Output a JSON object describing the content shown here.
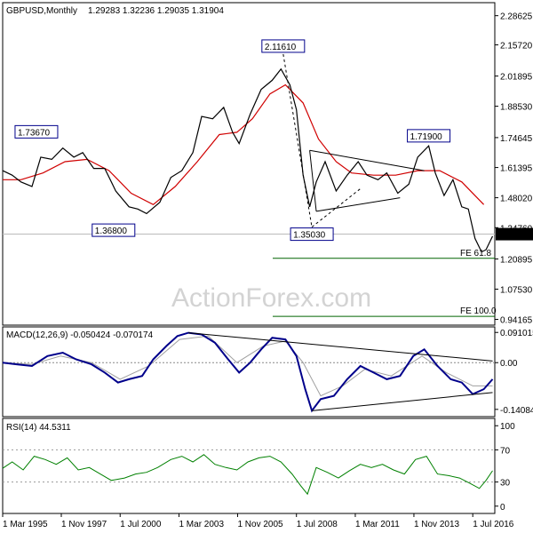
{
  "chart_data": [
    {
      "type": "line",
      "panel": "price",
      "title": "GBPUSD,Monthly",
      "ohlc_header": "1.29283 1.32236 1.29035 1.31904",
      "last_price": "1.31904",
      "y_ticks": [
        "2.28625",
        "2.15720",
        "2.01895",
        "1.88530",
        "1.74645",
        "1.61395",
        "1.48020",
        "1.34760",
        "1.20895",
        "1.07530",
        "0.94165"
      ],
      "y_tick_values": [
        2.28625,
        2.1572,
        2.01895,
        1.8853,
        1.74645,
        1.61395,
        1.4802,
        1.3476,
        1.20895,
        1.0753,
        0.94165
      ],
      "ylim": [
        0.92,
        2.34
      ],
      "xlim": [
        1995.17,
        2017.5
      ],
      "x_ticks": [
        "1 Mar 1995",
        "1 Nov 1997",
        "1 Jul 2000",
        "1 Mar 2003",
        "1 Nov 2005",
        "1 Jul 2008",
        "1 Mar 2011",
        "1 Nov 2013",
        "1 Jul 2016"
      ],
      "x_tick_values": [
        1995.17,
        1997.83,
        2000.5,
        2003.17,
        2005.83,
        2008.5,
        2011.17,
        2013.83,
        2016.5
      ],
      "price_points": [
        [
          1995.17,
          1.6
        ],
        [
          1995.6,
          1.58
        ],
        [
          1996.0,
          1.55
        ],
        [
          1996.5,
          1.53
        ],
        [
          1996.9,
          1.66
        ],
        [
          1997.4,
          1.65
        ],
        [
          1997.9,
          1.7
        ],
        [
          1998.4,
          1.66
        ],
        [
          1998.8,
          1.68
        ],
        [
          1999.3,
          1.61
        ],
        [
          1999.8,
          1.61
        ],
        [
          2000.3,
          1.51
        ],
        [
          2000.9,
          1.44
        ],
        [
          2001.3,
          1.43
        ],
        [
          2001.7,
          1.41
        ],
        [
          2002.3,
          1.46
        ],
        [
          2002.8,
          1.57
        ],
        [
          2003.3,
          1.6
        ],
        [
          2003.8,
          1.68
        ],
        [
          2004.2,
          1.84
        ],
        [
          2004.7,
          1.83
        ],
        [
          2005.2,
          1.88
        ],
        [
          2005.6,
          1.77
        ],
        [
          2005.9,
          1.72
        ],
        [
          2006.4,
          1.85
        ],
        [
          2006.9,
          1.96
        ],
        [
          2007.4,
          2.0
        ],
        [
          2007.8,
          2.05
        ],
        [
          2008.2,
          1.98
        ],
        [
          2008.5,
          1.87
        ],
        [
          2008.8,
          1.58
        ],
        [
          2009.1,
          1.44
        ],
        [
          2009.4,
          1.55
        ],
        [
          2009.8,
          1.64
        ],
        [
          2010.3,
          1.51
        ],
        [
          2010.8,
          1.58
        ],
        [
          2011.3,
          1.64
        ],
        [
          2011.7,
          1.58
        ],
        [
          2012.2,
          1.56
        ],
        [
          2012.6,
          1.59
        ],
        [
          2013.1,
          1.5
        ],
        [
          2013.6,
          1.54
        ],
        [
          2014.0,
          1.66
        ],
        [
          2014.5,
          1.71
        ],
        [
          2014.8,
          1.59
        ],
        [
          2015.2,
          1.49
        ],
        [
          2015.6,
          1.56
        ],
        [
          2016.0,
          1.44
        ],
        [
          2016.3,
          1.43
        ],
        [
          2016.6,
          1.3
        ],
        [
          2016.9,
          1.24
        ],
        [
          2017.1,
          1.25
        ],
        [
          2017.4,
          1.31
        ]
      ],
      "ma_points": [
        [
          1995.17,
          1.56
        ],
        [
          1996.0,
          1.56
        ],
        [
          1997.0,
          1.59
        ],
        [
          1998.0,
          1.64
        ],
        [
          1999.0,
          1.65
        ],
        [
          2000.0,
          1.6
        ],
        [
          2001.0,
          1.5
        ],
        [
          2002.0,
          1.45
        ],
        [
          2003.0,
          1.53
        ],
        [
          2004.0,
          1.64
        ],
        [
          2005.0,
          1.76
        ],
        [
          2005.8,
          1.77
        ],
        [
          2006.5,
          1.83
        ],
        [
          2007.3,
          1.94
        ],
        [
          2008.0,
          1.98
        ],
        [
          2008.8,
          1.9
        ],
        [
          2009.5,
          1.74
        ],
        [
          2010.3,
          1.64
        ],
        [
          2011.0,
          1.59
        ],
        [
          2012.0,
          1.58
        ],
        [
          2013.0,
          1.58
        ],
        [
          2014.0,
          1.6
        ],
        [
          2015.0,
          1.6
        ],
        [
          2016.0,
          1.55
        ],
        [
          2017.0,
          1.45
        ]
      ],
      "annotations": [
        {
          "text": "1.73670",
          "x": 1996.7,
          "y": 1.7367
        },
        {
          "text": "1.36800",
          "x": 2000.2,
          "y": 1.368
        },
        {
          "text": "2.11610",
          "x": 2007.9,
          "y": 2.1161
        },
        {
          "text": "1.35030",
          "x": 2009.2,
          "y": 1.3503
        },
        {
          "text": "1.71900",
          "x": 2014.5,
          "y": 1.719
        }
      ],
      "fibo_labels": [
        {
          "text": "FE 61.8",
          "y": 1.212
        },
        {
          "text": "FE 100.0",
          "y": 0.955
        }
      ]
    },
    {
      "type": "line",
      "panel": "macd",
      "title": "MACD(12,26,9) -0.050424 -0.070174",
      "y_ticks": [
        "0.091015",
        "0.00",
        "-0.140843"
      ],
      "y_tick_values": [
        0.091015,
        0.0,
        -0.140843
      ],
      "ylim": [
        -0.16,
        0.105
      ],
      "macd_points": [
        [
          1995.17,
          0.0
        ],
        [
          1995.8,
          -0.005
        ],
        [
          1996.5,
          -0.01
        ],
        [
          1997.2,
          0.02
        ],
        [
          1997.9,
          0.03
        ],
        [
          1998.5,
          0.01
        ],
        [
          1999.2,
          -0.005
        ],
        [
          1999.8,
          -0.03
        ],
        [
          2000.4,
          -0.06
        ],
        [
          2000.9,
          -0.05
        ],
        [
          2001.5,
          -0.04
        ],
        [
          2002.0,
          0.01
        ],
        [
          2002.6,
          0.05
        ],
        [
          2003.1,
          0.08
        ],
        [
          2003.6,
          0.09
        ],
        [
          2004.2,
          0.085
        ],
        [
          2004.8,
          0.06
        ],
        [
          2005.4,
          0.01
        ],
        [
          2005.9,
          -0.03
        ],
        [
          2006.4,
          0.0
        ],
        [
          2006.9,
          0.04
        ],
        [
          2007.4,
          0.075
        ],
        [
          2008.0,
          0.07
        ],
        [
          2008.5,
          0.02
        ],
        [
          2008.9,
          -0.08
        ],
        [
          2009.2,
          -0.145
        ],
        [
          2009.6,
          -0.11
        ],
        [
          2010.2,
          -0.1
        ],
        [
          2010.8,
          -0.05
        ],
        [
          2011.4,
          -0.01
        ],
        [
          2012.0,
          -0.03
        ],
        [
          2012.6,
          -0.05
        ],
        [
          2013.2,
          -0.04
        ],
        [
          2013.8,
          0.02
        ],
        [
          2014.3,
          0.04
        ],
        [
          2014.9,
          -0.01
        ],
        [
          2015.5,
          -0.05
        ],
        [
          2016.0,
          -0.06
        ],
        [
          2016.5,
          -0.095
        ],
        [
          2017.0,
          -0.08
        ],
        [
          2017.4,
          -0.05
        ]
      ],
      "signal_points": [
        [
          1995.17,
          0.0
        ],
        [
          1996.5,
          -0.005
        ],
        [
          1997.8,
          0.02
        ],
        [
          1999.2,
          0.0
        ],
        [
          2000.5,
          -0.05
        ],
        [
          2001.8,
          -0.01
        ],
        [
          2003.2,
          0.07
        ],
        [
          2004.5,
          0.08
        ],
        [
          2005.8,
          0.0
        ],
        [
          2007.0,
          0.05
        ],
        [
          2008.0,
          0.065
        ],
        [
          2008.8,
          0.0
        ],
        [
          2009.6,
          -0.1
        ],
        [
          2010.6,
          -0.07
        ],
        [
          2011.6,
          -0.02
        ],
        [
          2012.8,
          -0.04
        ],
        [
          2014.2,
          0.02
        ],
        [
          2015.3,
          -0.03
        ],
        [
          2016.5,
          -0.07
        ],
        [
          2017.4,
          -0.07
        ]
      ]
    },
    {
      "type": "line",
      "panel": "rsi",
      "title": "RSI(14) 44.5311",
      "y_ticks": [
        "100",
        "70",
        "30",
        "0"
      ],
      "y_tick_values": [
        100,
        70,
        30,
        0
      ],
      "ylim": [
        -8,
        108
      ],
      "rsi_points": [
        [
          1995.17,
          47
        ],
        [
          1995.6,
          55
        ],
        [
          1996.1,
          45
        ],
        [
          1996.6,
          62
        ],
        [
          1997.1,
          58
        ],
        [
          1997.6,
          52
        ],
        [
          1998.1,
          60
        ],
        [
          1998.6,
          45
        ],
        [
          1999.1,
          48
        ],
        [
          1999.6,
          40
        ],
        [
          2000.1,
          32
        ],
        [
          2000.7,
          35
        ],
        [
          2001.2,
          40
        ],
        [
          2001.7,
          42
        ],
        [
          2002.2,
          48
        ],
        [
          2002.8,
          58
        ],
        [
          2003.3,
          62
        ],
        [
          2003.8,
          55
        ],
        [
          2004.3,
          64
        ],
        [
          2004.8,
          52
        ],
        [
          2005.3,
          48
        ],
        [
          2005.8,
          45
        ],
        [
          2006.3,
          55
        ],
        [
          2006.8,
          60
        ],
        [
          2007.3,
          62
        ],
        [
          2007.8,
          55
        ],
        [
          2008.3,
          40
        ],
        [
          2008.7,
          25
        ],
        [
          2009.0,
          15
        ],
        [
          2009.4,
          48
        ],
        [
          2009.9,
          42
        ],
        [
          2010.4,
          35
        ],
        [
          2010.9,
          44
        ],
        [
          2011.4,
          52
        ],
        [
          2011.9,
          48
        ],
        [
          2012.4,
          52
        ],
        [
          2012.9,
          45
        ],
        [
          2013.4,
          40
        ],
        [
          2013.9,
          58
        ],
        [
          2014.4,
          62
        ],
        [
          2014.9,
          40
        ],
        [
          2015.4,
          38
        ],
        [
          2015.9,
          35
        ],
        [
          2016.4,
          28
        ],
        [
          2016.8,
          22
        ],
        [
          2017.1,
          32
        ],
        [
          2017.4,
          44
        ]
      ]
    }
  ],
  "watermark": "ActionForex.com",
  "colors": {
    "price_line": "#000000",
    "ma_line": "#d00000",
    "macd_line": "#00008b",
    "signal_line": "#a0a0a0",
    "rsi_line": "#008000",
    "trend_line": "#000000",
    "fibo_line": "#006400",
    "label_border": "#00008b"
  }
}
